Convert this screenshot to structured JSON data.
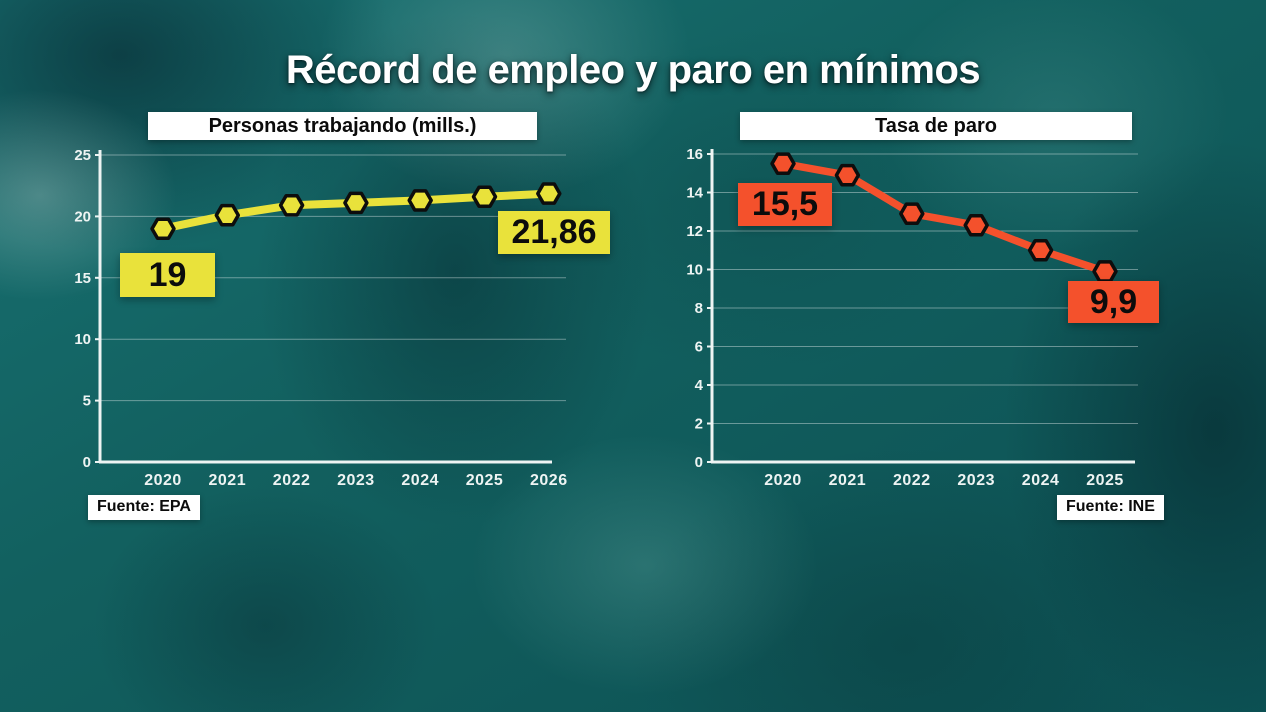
{
  "title": "Récord de empleo y paro en mínimos",
  "colors": {
    "background_teal": "#12605f",
    "employment_accent": "#e9e23b",
    "unemployment_accent": "#f4512c",
    "axis_white": "#eef4f3",
    "gridline": "rgba(255,255,255,0.38)",
    "marker_outline": "#0d0d0d",
    "label_text": "#0c0c0c",
    "panel_white": "#ffffff"
  },
  "chart_data": [
    {
      "type": "line",
      "title": "Personas trabajando (mills.)",
      "source": "Fuente: EPA",
      "x": [
        "2020",
        "2021",
        "2022",
        "2023",
        "2024",
        "2025",
        "2026"
      ],
      "values": [
        19,
        20.1,
        20.9,
        21.1,
        21.3,
        21.6,
        21.86
      ],
      "ylim": [
        0,
        25
      ],
      "yticks": [
        0,
        5,
        10,
        15,
        20,
        25
      ],
      "grid": true,
      "legend": "none",
      "line_color": "#e9e23b",
      "marker": "hexagon",
      "callouts": [
        {
          "x": "2020",
          "label": "19"
        },
        {
          "x": "2026",
          "label": "21,86"
        }
      ]
    },
    {
      "type": "line",
      "title": "Tasa de paro",
      "source": "Fuente: INE",
      "x": [
        "2020",
        "2021",
        "2022",
        "2023",
        "2024",
        "2025"
      ],
      "values": [
        15.5,
        14.9,
        12.9,
        12.3,
        11.0,
        9.9
      ],
      "ylim": [
        0,
        16
      ],
      "yticks": [
        0,
        2,
        4,
        6,
        8,
        10,
        12,
        14,
        16
      ],
      "grid": true,
      "legend": "none",
      "line_color": "#f4512c",
      "marker": "hexagon",
      "callouts": [
        {
          "x": "2020",
          "label": "15,5"
        },
        {
          "x": "2025",
          "label": "9,9"
        }
      ]
    }
  ]
}
